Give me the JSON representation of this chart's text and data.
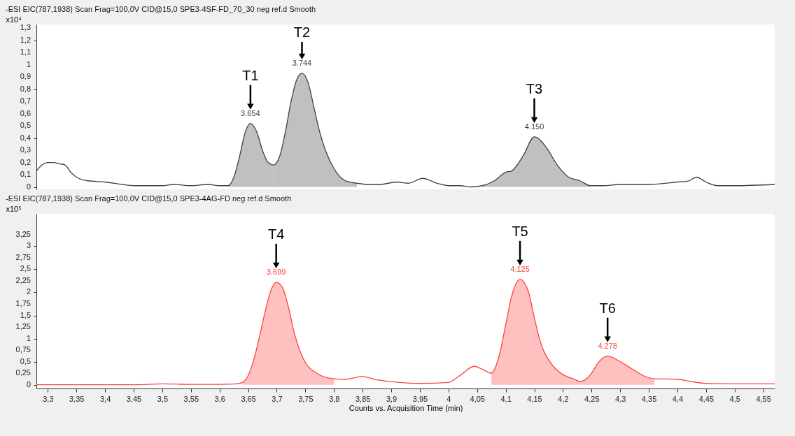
{
  "chart_data": [
    {
      "type": "line",
      "title": "-ESI EIC(787,1938) Scan Frag=100,0V CID@15,0 SPE3-4SF-FD_70_30 neg ref.d  Smooth",
      "ylabel": "x10⁴",
      "xlim": [
        3.28,
        4.57
      ],
      "ylim": [
        -0.02,
        1.33
      ],
      "yticks": [
        0,
        {
          "value": 0.1,
          "label": "0,1"
        },
        {
          "value": 0.2,
          "label": "0,2"
        },
        {
          "value": 0.3,
          "label": "0,3"
        },
        {
          "value": 0.4,
          "label": "0,4"
        },
        {
          "value": 0.5,
          "label": "0,5"
        },
        {
          "value": 0.6,
          "label": "0,6"
        },
        {
          "value": 0.7,
          "label": "0,7"
        },
        {
          "value": 0.8,
          "label": "0,8"
        },
        {
          "value": 0.9,
          "label": "0,9"
        },
        1,
        {
          "value": 1.1,
          "label": "1,1"
        },
        {
          "value": 1.2,
          "label": "1,2"
        },
        {
          "value": 1.3,
          "label": "1,3"
        }
      ],
      "tick_labels": "y",
      "grid": false,
      "series": [
        {
          "type": "area",
          "color": "#c0c0c0",
          "x": [
            3.615,
            3.625,
            3.635,
            3.645,
            3.654,
            3.665,
            3.675,
            3.685,
            3.695
          ],
          "values": [
            0.01,
            0.08,
            0.25,
            0.45,
            0.52,
            0.45,
            0.3,
            0.2,
            0.18
          ]
        },
        {
          "type": "area",
          "color": "#c0c0c0",
          "x": [
            3.695,
            3.705,
            3.715,
            3.725,
            3.735,
            3.744,
            3.755,
            3.765,
            3.775,
            3.785,
            3.8,
            3.82,
            3.84
          ],
          "values": [
            0.18,
            0.25,
            0.45,
            0.7,
            0.88,
            0.93,
            0.85,
            0.65,
            0.45,
            0.3,
            0.15,
            0.05,
            0.03
          ]
        },
        {
          "type": "area",
          "color": "#c0c0c0",
          "x": [
            4.059,
            4.08,
            4.1,
            4.11,
            4.13,
            4.15,
            4.17,
            4.19,
            4.21,
            4.23,
            4.248
          ],
          "values": [
            0.01,
            0.05,
            0.12,
            0.13,
            0.25,
            0.41,
            0.33,
            0.18,
            0.08,
            0.05,
            0.01
          ]
        },
        {
          "type": "line",
          "color": "#404040",
          "x": [
            3.28,
            3.29,
            3.3,
            3.31,
            3.32,
            3.33,
            3.34,
            3.35,
            3.37,
            3.4,
            3.43,
            3.45,
            3.5,
            3.52,
            3.55,
            3.58,
            3.6,
            3.615,
            3.625,
            3.635,
            3.645,
            3.654,
            3.665,
            3.675,
            3.685,
            3.695,
            3.705,
            3.715,
            3.725,
            3.735,
            3.744,
            3.755,
            3.765,
            3.775,
            3.785,
            3.8,
            3.82,
            3.84,
            3.86,
            3.88,
            3.91,
            3.93,
            3.955,
            3.98,
            4.0,
            4.02,
            4.04,
            4.059,
            4.08,
            4.1,
            4.11,
            4.13,
            4.15,
            4.17,
            4.19,
            4.21,
            4.23,
            4.248,
            4.27,
            4.3,
            4.35,
            4.4,
            4.42,
            4.433,
            4.45,
            4.47,
            4.5,
            4.57
          ],
          "values": [
            0.13,
            0.18,
            0.2,
            0.2,
            0.19,
            0.18,
            0.12,
            0.08,
            0.05,
            0.04,
            0.02,
            0.01,
            0.01,
            0.02,
            0.01,
            0.02,
            0.01,
            0.01,
            0.08,
            0.25,
            0.45,
            0.52,
            0.45,
            0.3,
            0.2,
            0.18,
            0.25,
            0.45,
            0.7,
            0.88,
            0.93,
            0.85,
            0.65,
            0.45,
            0.3,
            0.15,
            0.05,
            0.03,
            0.02,
            0.02,
            0.04,
            0.03,
            0.07,
            0.03,
            0.01,
            0.01,
            0.0,
            0.01,
            0.05,
            0.12,
            0.13,
            0.25,
            0.41,
            0.33,
            0.18,
            0.08,
            0.05,
            0.01,
            0.01,
            0.02,
            0.02,
            0.04,
            0.05,
            0.08,
            0.04,
            0.01,
            0.01,
            0.02
          ]
        }
      ],
      "annotations": [
        {
          "text": "3.654",
          "x": 3.654,
          "y": 0.52
        },
        "T1",
        {
          "text": "3.744",
          "x": 3.744,
          "y": 0.93
        },
        "T2",
        {
          "text": "4.150",
          "x": 4.15,
          "y": 0.41
        },
        "T3"
      ]
    },
    {
      "type": "line",
      "title": "-ESI EIC(787,1938) Scan Frag=100,0V CID@15,0 SPE3-4AG-FD neg ref.d  Smooth",
      "ylabel": "x10⁵",
      "xlabel": "Counts vs. Acquisition Time (min)",
      "xlim": [
        3.28,
        4.57
      ],
      "ylim": [
        -0.08,
        3.7
      ],
      "xticks": [
        {
          "value": 3.3,
          "label": "3,3"
        },
        {
          "value": 3.35,
          "label": "3,35"
        },
        {
          "value": 3.4,
          "label": "3,4"
        },
        {
          "value": 3.45,
          "label": "3,45"
        },
        {
          "value": 3.5,
          "label": "3,5"
        },
        {
          "value": 3.55,
          "label": "3,55"
        },
        {
          "value": 3.6,
          "label": "3,6"
        },
        {
          "value": 3.65,
          "label": "3,65"
        },
        {
          "value": 3.7,
          "label": "3,7"
        },
        {
          "value": 3.75,
          "label": "3,75"
        },
        {
          "value": 3.8,
          "label": "3,8"
        },
        {
          "value": 3.85,
          "label": "3,85"
        },
        {
          "value": 3.9,
          "label": "3,9"
        },
        {
          "value": 3.95,
          "label": "3,95"
        },
        4,
        {
          "value": 4.05,
          "label": "4,05"
        },
        {
          "value": 4.1,
          "label": "4,1"
        },
        {
          "value": 4.15,
          "label": "4,15"
        },
        {
          "value": 4.2,
          "label": "4,2"
        },
        {
          "value": 4.25,
          "label": "4,25"
        },
        {
          "value": 4.3,
          "label": "4,3"
        },
        {
          "value": 4.35,
          "label": "4,35"
        },
        {
          "value": 4.4,
          "label": "4,4"
        },
        {
          "value": 4.45,
          "label": "4,45"
        },
        {
          "value": 4.5,
          "label": "4,5"
        },
        {
          "value": 4.55,
          "label": "4,55"
        }
      ],
      "yticks": [
        0,
        {
          "value": 0.25,
          "label": "0,25"
        },
        {
          "value": 0.5,
          "label": "0,5"
        },
        {
          "value": 0.75,
          "label": "0,75"
        },
        1,
        {
          "value": 1.25,
          "label": "1,25"
        },
        {
          "value": 1.5,
          "label": "1,5"
        },
        {
          "value": 1.75,
          "label": "1,75"
        },
        2,
        {
          "value": 2.25,
          "label": "2,25"
        },
        {
          "value": 2.5,
          "label": "2,5"
        },
        {
          "value": 2.75,
          "label": "2,75"
        },
        3,
        {
          "value": 3.25,
          "label": "3,25"
        }
      ],
      "grid": false,
      "series": [
        {
          "type": "area",
          "color": "#ffc0c0",
          "x": [
            3.64,
            3.65,
            3.66,
            3.67,
            3.68,
            3.69,
            3.699,
            3.71,
            3.72,
            3.73,
            3.74,
            3.75,
            3.77,
            3.79,
            3.8
          ],
          "values": [
            0.05,
            0.2,
            0.55,
            1.05,
            1.6,
            2.05,
            2.22,
            2.1,
            1.7,
            1.15,
            0.75,
            0.48,
            0.25,
            0.15,
            0.13
          ]
        },
        {
          "type": "area",
          "color": "#ffc0c0",
          "x": [
            4.075,
            4.09,
            4.1,
            4.11,
            4.125,
            4.14,
            4.15,
            4.16,
            4.18,
            4.2,
            4.22,
            4.23
          ],
          "values": [
            0.25,
            0.7,
            1.3,
            1.9,
            2.28,
            2.0,
            1.45,
            0.95,
            0.45,
            0.22,
            0.12,
            0.07
          ]
        },
        {
          "type": "area",
          "color": "#ffc0c0",
          "x": [
            4.23,
            4.25,
            4.26,
            4.278,
            4.3,
            4.32,
            4.34,
            4.36
          ],
          "values": [
            0.07,
            0.25,
            0.45,
            0.62,
            0.5,
            0.35,
            0.2,
            0.13
          ]
        },
        {
          "type": "line",
          "color": "#ff4040",
          "x": [
            3.28,
            3.35,
            3.4,
            3.45,
            3.5,
            3.55,
            3.6,
            3.63,
            3.64,
            3.65,
            3.66,
            3.67,
            3.68,
            3.69,
            3.699,
            3.71,
            3.72,
            3.73,
            3.74,
            3.75,
            3.77,
            3.79,
            3.8,
            3.82,
            3.85,
            3.87,
            3.9,
            3.95,
            4.0,
            4.02,
            4.045,
            4.06,
            4.075,
            4.09,
            4.1,
            4.11,
            4.125,
            4.14,
            4.15,
            4.16,
            4.18,
            4.2,
            4.22,
            4.23,
            4.25,
            4.26,
            4.278,
            4.3,
            4.32,
            4.34,
            4.36,
            4.4,
            4.42,
            4.45,
            4.5,
            4.57
          ],
          "values": [
            0.0,
            0.0,
            0.0,
            0.0,
            0.02,
            0.01,
            0.01,
            0.02,
            0.05,
            0.2,
            0.55,
            1.05,
            1.6,
            2.05,
            2.22,
            2.1,
            1.7,
            1.15,
            0.75,
            0.48,
            0.25,
            0.15,
            0.13,
            0.12,
            0.18,
            0.12,
            0.07,
            0.03,
            0.05,
            0.2,
            0.4,
            0.33,
            0.25,
            0.7,
            1.3,
            1.9,
            2.28,
            2.0,
            1.45,
            0.95,
            0.45,
            0.22,
            0.12,
            0.07,
            0.25,
            0.45,
            0.62,
            0.5,
            0.35,
            0.2,
            0.13,
            0.12,
            0.08,
            0.03,
            0.02,
            0.02
          ]
        }
      ],
      "annotations": [
        {
          "text": "3.699",
          "x": 3.699,
          "y": 2.22
        },
        "T4",
        {
          "text": "4.125",
          "x": 4.125,
          "y": 2.28
        },
        "T5",
        {
          "text": "4.278",
          "x": 4.278,
          "y": 0.62
        },
        "T6"
      ]
    }
  ]
}
